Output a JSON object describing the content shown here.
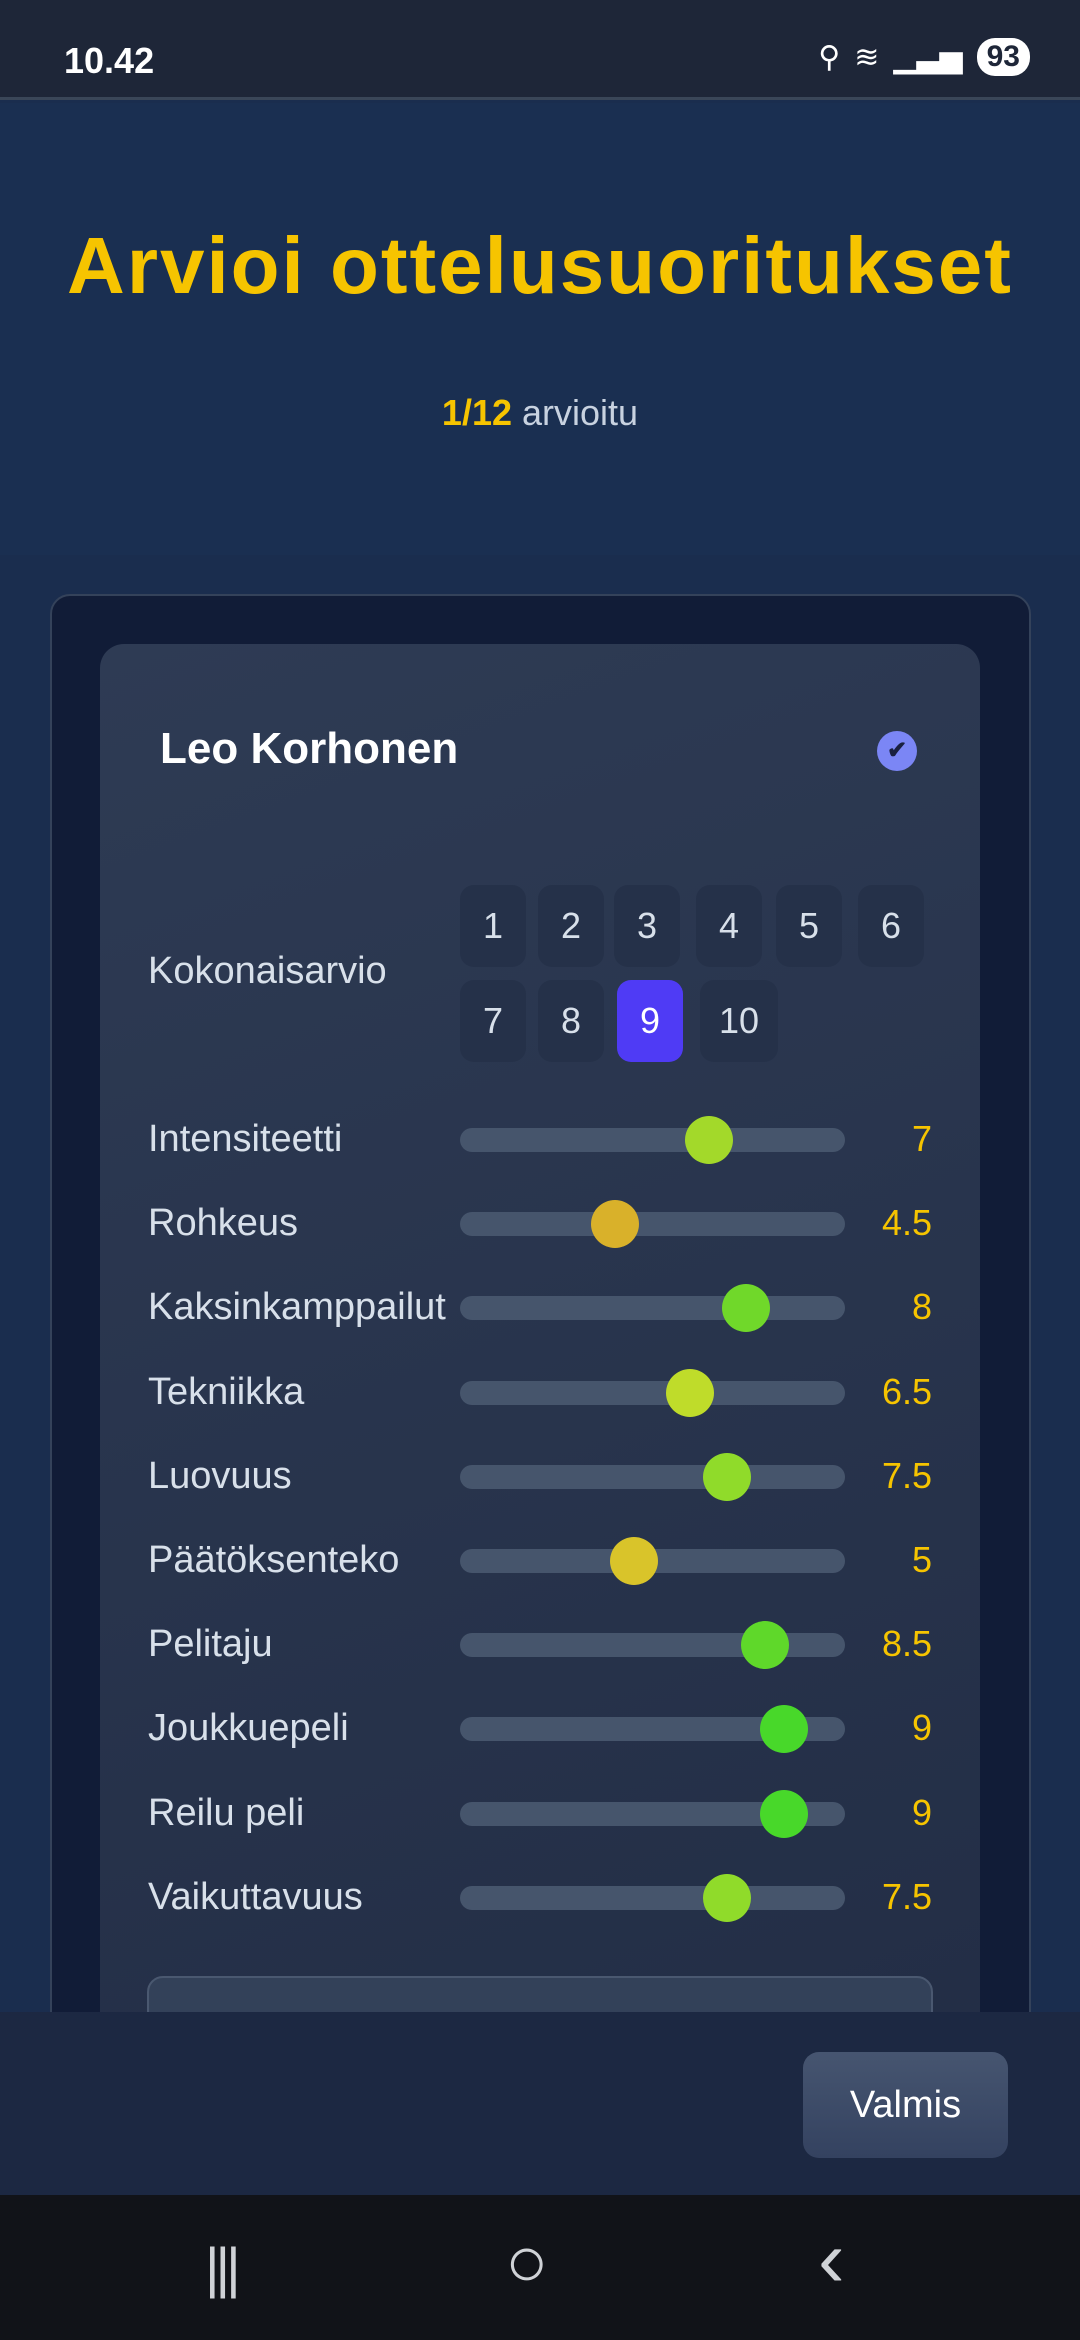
{
  "status_bar": {
    "time": "10.42",
    "battery": "93",
    "icons": [
      "location-icon",
      "wifi-icon",
      "signal-icon",
      "battery-icon"
    ]
  },
  "header": {
    "title": "Arvioi ottelusuoritukset",
    "progress_count": "1/12",
    "progress_label": "arvioitu"
  },
  "player": {
    "name": "Leo Korhonen",
    "completed": true
  },
  "overall": {
    "label": "Kokonaisarvio",
    "options": [
      "1",
      "2",
      "3",
      "4",
      "5",
      "6",
      "7",
      "8",
      "9",
      "10"
    ],
    "selected": "9",
    "accent": "#4f3bf5"
  },
  "slider_range": [
    1,
    10
  ],
  "criteria": [
    {
      "label": "Intensiteetti",
      "value": "7",
      "color": "#a3d92a"
    },
    {
      "label": "Rohkeus",
      "value": "4.5",
      "color": "#d9b12a"
    },
    {
      "label": "Kaksinkamppailut",
      "value": "8",
      "color": "#70d82a"
    },
    {
      "label": "Tekniikka",
      "value": "6.5",
      "color": "#bfdc2a"
    },
    {
      "label": "Luovuus",
      "value": "7.5",
      "color": "#90db2a"
    },
    {
      "label": "Päätöksenteko",
      "value": "5",
      "color": "#d9c42a"
    },
    {
      "label": "Pelitaju",
      "value": "8.5",
      "color": "#5fd82a"
    },
    {
      "label": "Joukkuepeli",
      "value": "9",
      "color": "#48d82a"
    },
    {
      "label": "Reilu peli",
      "value": "9",
      "color": "#48d82a"
    },
    {
      "label": "Vaikuttavuus",
      "value": "7.5",
      "color": "#90db2a"
    }
  ],
  "footer": {
    "done_label": "Valmis"
  },
  "nav": {
    "recents": "|||",
    "home": "○",
    "back": "‹"
  }
}
